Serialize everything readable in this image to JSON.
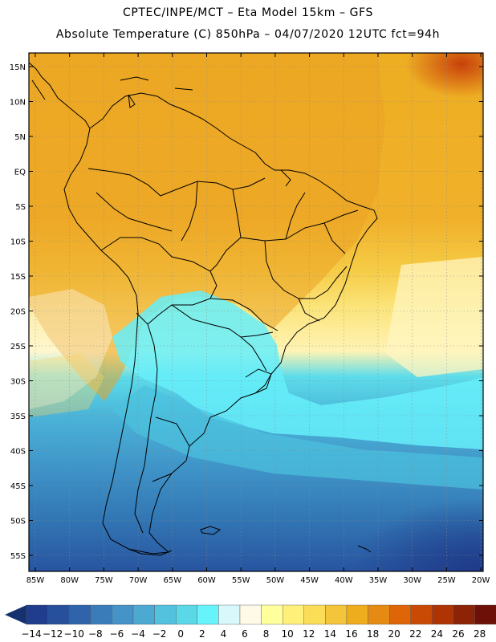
{
  "header": {
    "line1": "CPTEC/INPE/MCT –  Eta Model 15km – GFS",
    "line2": "Absolute Temperature (C) 850hPa – 04/07/2020 12UTC fct=94h"
  },
  "map": {
    "lat_labels": [
      "15N",
      "10N",
      "5N",
      "EQ",
      "5S",
      "10S",
      "15S",
      "20S",
      "25S",
      "30S",
      "35S",
      "40S",
      "45S",
      "50S",
      "55S"
    ],
    "lon_labels": [
      "85W",
      "80W",
      "75W",
      "70W",
      "65W",
      "60W",
      "55W",
      "50W",
      "45W",
      "40W",
      "35W",
      "30W",
      "25W",
      "20W"
    ]
  },
  "colorbar": {
    "labels": [
      "-14",
      "-12",
      "-10",
      "-8",
      "-6",
      "-4",
      "-2",
      "0",
      "2",
      "4",
      "6",
      "8",
      "10",
      "12",
      "14",
      "16",
      "18",
      "20",
      "22",
      "24",
      "26",
      "28"
    ],
    "colors": [
      "#1f3d8c",
      "#27509c",
      "#2f64aa",
      "#3a7cba",
      "#4593c7",
      "#4caad2",
      "#52c2de",
      "#5ad8e8",
      "#66f4fa",
      "#d8f8fc",
      "#fffae8",
      "#ffff9c",
      "#fff07a",
      "#fbdd58",
      "#f4c43a",
      "#eead1c",
      "#e58a12",
      "#df6608",
      "#c94a04",
      "#ae3404",
      "#8c2206",
      "#6d1008"
    ],
    "under_color": "#15316e",
    "over_color": "#5a0012"
  }
}
